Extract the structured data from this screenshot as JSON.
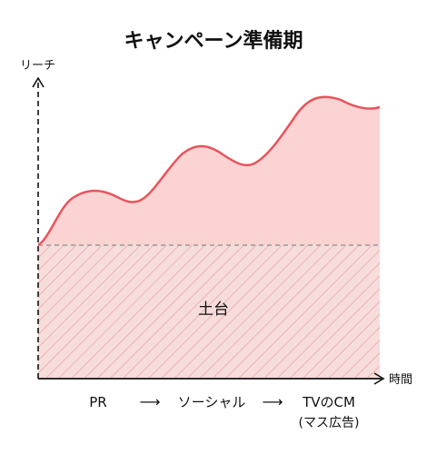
{
  "title": "キャンペーン準備期",
  "y_axis_label": "リーチ",
  "x_axis_label": "時間",
  "base_area_label": "土台",
  "phases": [
    {
      "label": "PR",
      "sublabel": ""
    },
    {
      "label": "ソーシャル",
      "sublabel": ""
    },
    {
      "label": "TVのCM",
      "sublabel": "(マス広告)"
    }
  ],
  "phase_arrow_glyph": "⟶",
  "colors": {
    "curve": "#e8545c",
    "area_fill": "#fbd3d3",
    "hatch": "#e7a1a1",
    "baseline": "#999999",
    "axis": "#111111"
  }
}
